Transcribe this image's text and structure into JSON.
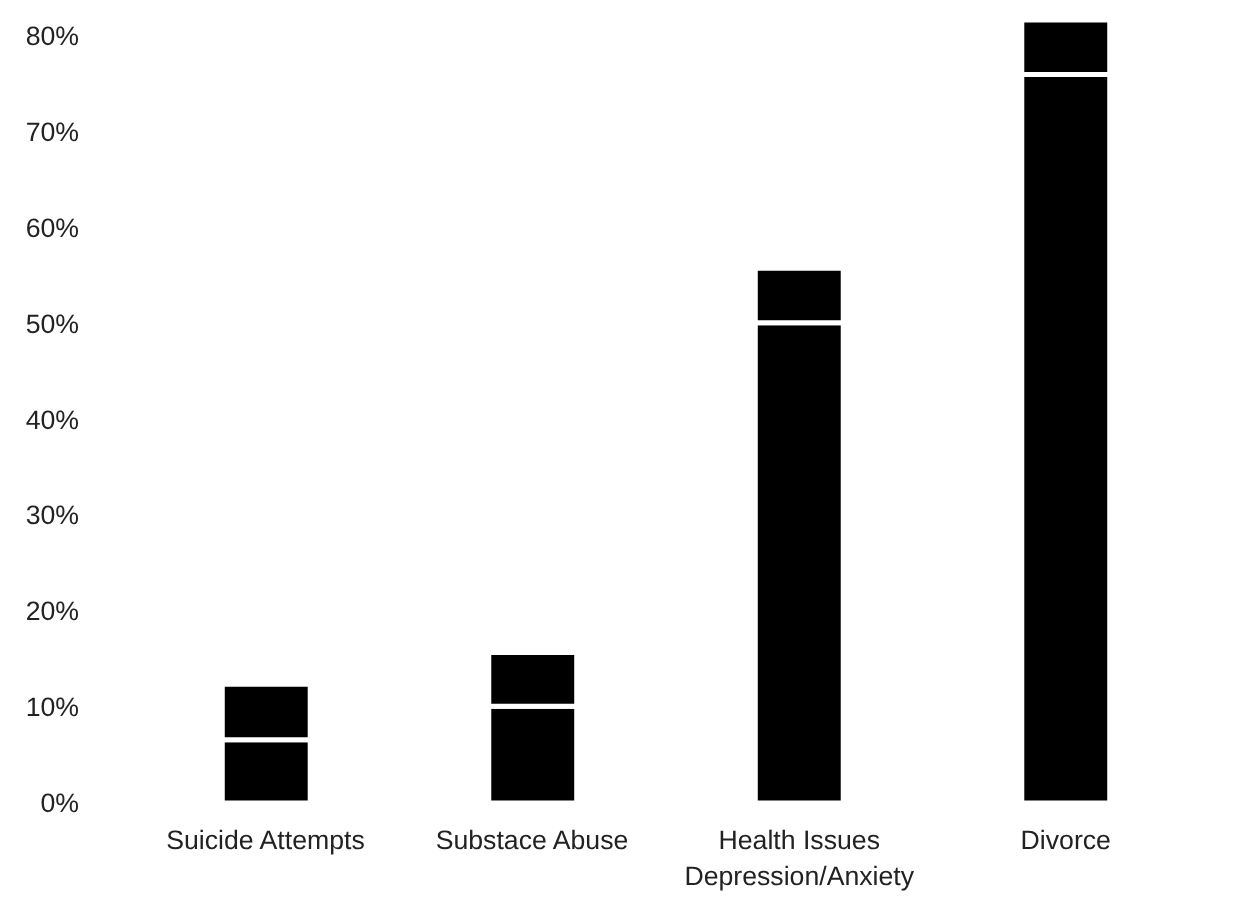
{
  "chart_data": {
    "type": "bar",
    "stacked": true,
    "categories": [
      "Suicide Attempts",
      "Substace Abuse",
      "Health Issues\nDepression/Anxiety",
      "Divorce"
    ],
    "series": [
      {
        "color": "#000000",
        "values": [
          6.6,
          10.1,
          50.1,
          76.0
        ]
      },
      {
        "color": "#000000",
        "values": [
          5.8,
          5.6,
          5.7,
          5.7
        ]
      }
    ],
    "ylim": [
      0,
      82
    ],
    "yticks": [
      {
        "value": 0,
        "label": "0%"
      },
      {
        "value": 10,
        "label": "10%"
      },
      {
        "value": 20,
        "label": "20%"
      },
      {
        "value": 30,
        "label": "30%"
      },
      {
        "value": 40,
        "label": "40%"
      },
      {
        "value": 50,
        "label": "50%"
      },
      {
        "value": 60,
        "label": "60%"
      },
      {
        "value": 70,
        "label": "70%"
      },
      {
        "value": 80,
        "label": "80%"
      }
    ],
    "grid": false
  }
}
